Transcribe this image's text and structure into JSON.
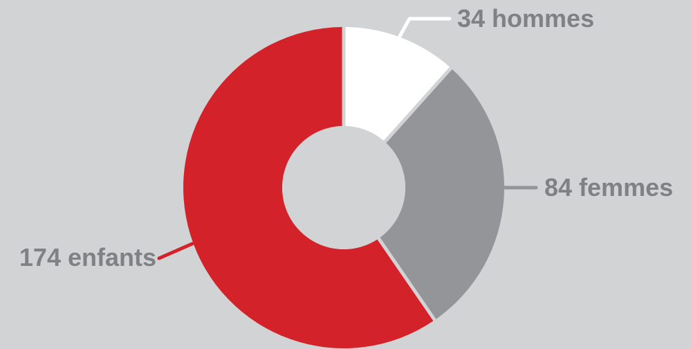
{
  "chart_data": {
    "type": "pie",
    "donut": true,
    "title": "",
    "slices": [
      {
        "label": "34 hommes",
        "value": 34,
        "color": "#ffffff"
      },
      {
        "label": "84 femmes",
        "value": 84,
        "color": "#939598"
      },
      {
        "label": "174 enfants",
        "value": 174,
        "color": "#d3222a"
      }
    ],
    "background_color": "#d2d3d5",
    "leader_color_default": "#ffffff",
    "label_color": "#808184"
  }
}
